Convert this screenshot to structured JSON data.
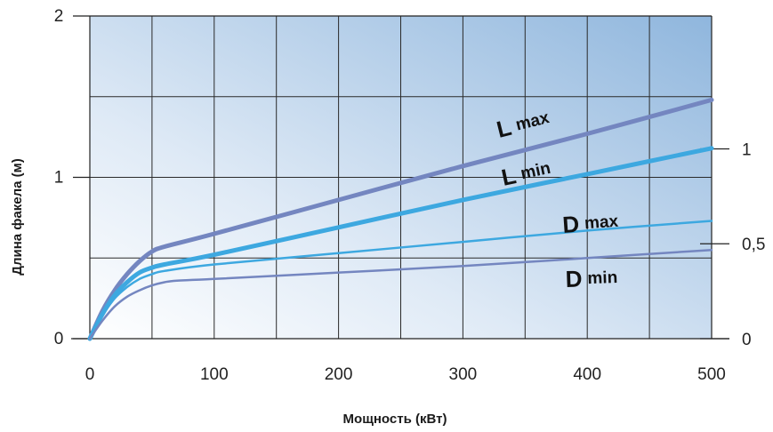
{
  "chart_data": {
    "type": "line",
    "title": "",
    "xlabel": "Мощность (кВт)",
    "ylabel": "Длина факела (м)",
    "xlim": [
      0,
      500
    ],
    "ylim": [
      0,
      2
    ],
    "right_ylim": [
      0,
      1.7
    ],
    "grid": true,
    "x_ticks": [
      "0",
      "100",
      "200",
      "300",
      "400",
      "500"
    ],
    "y_ticks": [
      "0",
      "1",
      "2"
    ],
    "right_y_ticks": [
      "0",
      "0,5",
      "1"
    ],
    "series": [
      {
        "name": "L max",
        "label_main": "L",
        "label_sub": "max",
        "axis": "left",
        "color": "#7486c0",
        "width": 5,
        "x": [
          0,
          10,
          20,
          30,
          40,
          50,
          60,
          100,
          200,
          300,
          400,
          500
        ],
        "y": [
          0.0,
          0.17,
          0.3,
          0.4,
          0.48,
          0.54,
          0.57,
          0.65,
          0.86,
          1.07,
          1.27,
          1.48
        ]
      },
      {
        "name": "L min",
        "label_main": "L",
        "label_sub": "min",
        "axis": "left",
        "color": "#3da8e0",
        "width": 5,
        "x": [
          0,
          10,
          20,
          30,
          40,
          50,
          60,
          100,
          200,
          300,
          400,
          500
        ],
        "y": [
          0.0,
          0.15,
          0.27,
          0.35,
          0.41,
          0.44,
          0.46,
          0.52,
          0.69,
          0.86,
          1.02,
          1.18
        ]
      },
      {
        "name": "D max",
        "label_main": "D",
        "label_sub": "max",
        "axis": "left",
        "color": "#3da8e0",
        "width": 2.5,
        "x": [
          0,
          10,
          20,
          30,
          40,
          50,
          60,
          100,
          200,
          300,
          400,
          500
        ],
        "y": [
          0.0,
          0.14,
          0.25,
          0.32,
          0.37,
          0.4,
          0.42,
          0.46,
          0.53,
          0.6,
          0.67,
          0.73
        ]
      },
      {
        "name": "D min",
        "label_main": "D",
        "label_sub": "min",
        "axis": "left",
        "color": "#7486c0",
        "width": 2.5,
        "x": [
          0,
          10,
          20,
          30,
          40,
          50,
          60,
          70,
          100,
          200,
          300,
          400,
          500
        ],
        "y": [
          0.0,
          0.11,
          0.2,
          0.26,
          0.3,
          0.33,
          0.35,
          0.36,
          0.37,
          0.41,
          0.45,
          0.5,
          0.55
        ]
      }
    ]
  }
}
